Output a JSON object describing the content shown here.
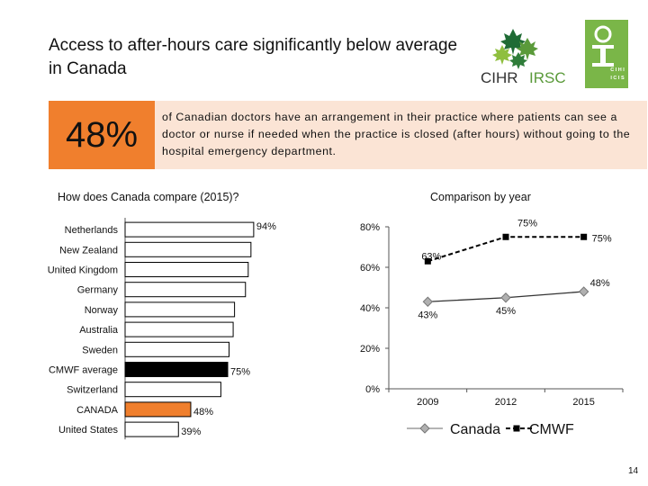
{
  "slide": {
    "title": "Access to after-hours care significantly below average in Canada",
    "highlight": {
      "value": "48%",
      "text": "of Canadian doctors have an arrangement in their practice where patients can see a doctor or nurse if needed when the practice is closed (after hours) without going to the hospital emergency department."
    },
    "page_number": "14"
  },
  "logos": {
    "cihr": {
      "c": "CIHR",
      "i": "IRSC"
    },
    "cihi": {
      "l1": "C I H I",
      "l2": "I C I S"
    }
  },
  "colors": {
    "canada": "#f07f2d",
    "cmwf": "#000000",
    "default_bar": "#000000",
    "band": "#fbe4d5"
  },
  "chart_data": [
    {
      "type": "bar",
      "orientation": "horizontal",
      "title": "How does Canada compare (2015)?",
      "categories": [
        "Netherlands",
        "New Zealand",
        "United Kingdom",
        "Germany",
        "Norway",
        "Australia",
        "Sweden",
        "CMWF average",
        "Switzerland",
        "CANADA",
        "United States"
      ],
      "values": [
        94,
        92,
        90,
        88,
        80,
        79,
        76,
        75,
        70,
        48,
        39
      ],
      "labels": [
        "94%",
        "",
        "",
        "",
        "",
        "",
        "",
        "75%",
        "",
        "48%",
        "39%"
      ],
      "highlight": {
        "CANADA": "canada",
        "CMWF average": "cmwf"
      },
      "xlim": [
        0,
        100
      ]
    },
    {
      "type": "line",
      "title": "Comparison by year",
      "x": [
        "2009",
        "2012",
        "2015"
      ],
      "series": [
        {
          "name": "Canada",
          "values": [
            43,
            45,
            48
          ],
          "labels": [
            "43%",
            "45%",
            "48%"
          ],
          "marker": "diamond",
          "line": "solid"
        },
        {
          "name": "CMWF",
          "values": [
            63,
            75,
            75
          ],
          "labels": [
            "63%",
            "75%",
            "75%"
          ],
          "marker": "square",
          "line": "dashed"
        }
      ],
      "yticks": [
        "0%",
        "20%",
        "40%",
        "60%",
        "80%"
      ],
      "ylim": [
        0,
        80
      ],
      "legend": [
        "Canada",
        "CMWF"
      ]
    }
  ]
}
